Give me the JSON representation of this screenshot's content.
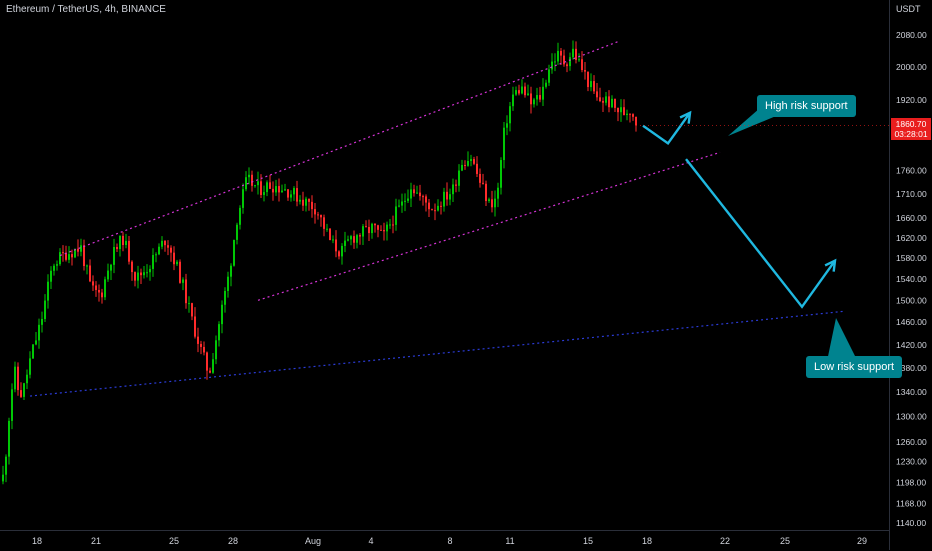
{
  "header": {
    "symbol_line": "Ethereum / TetherUS, 4h, BINANCE",
    "unit": "USDT"
  },
  "current_price": {
    "value": "1860.70",
    "countdown": "03:28:01"
  },
  "annotations": {
    "high_risk": "High risk support",
    "low_risk": "Low risk support"
  },
  "colors": {
    "background": "#000000",
    "bull": "#00c805",
    "bear": "#ff2b2b",
    "channel": "#d633d6",
    "long_support": "#2b3bd6",
    "arrow": "#1fb8e0",
    "callout": "#00838f",
    "price_tag": "#e91e1e"
  },
  "chart_data": {
    "type": "candlestick",
    "title": "Ethereum / TetherUS, 4h, BINANCE",
    "y_unit": "USDT",
    "y_scale": "log",
    "ylim": [
      1140,
      2090
    ],
    "y_ticks": [
      1140.0,
      1168.0,
      1198.0,
      1230.0,
      1260.0,
      1300.0,
      1340.0,
      1380.0,
      1420.0,
      1460.0,
      1500.0,
      1540.0,
      1580.0,
      1620.0,
      1660.0,
      1710.0,
      1760.0,
      1920.0,
      2000.0,
      2080.0
    ],
    "x_ticks": [
      "18",
      "21",
      "25",
      "28",
      "Aug",
      "4",
      "8",
      "11",
      "15",
      "18",
      "22",
      "25",
      "29"
    ],
    "last_price": 1860.7,
    "price_path": [
      [
        0,
        1200
      ],
      [
        3,
        1210
      ],
      [
        8,
        1300
      ],
      [
        13,
        1380
      ],
      [
        18,
        1335
      ],
      [
        22,
        1340
      ],
      [
        30,
        1400
      ],
      [
        40,
        1460
      ],
      [
        52,
        1570
      ],
      [
        65,
        1590
      ],
      [
        80,
        1600
      ],
      [
        90,
        1520
      ],
      [
        100,
        1510
      ],
      [
        110,
        1580
      ],
      [
        122,
        1620
      ],
      [
        135,
        1540
      ],
      [
        150,
        1570
      ],
      [
        165,
        1620
      ],
      [
        180,
        1540
      ],
      [
        190,
        1470
      ],
      [
        200,
        1410
      ],
      [
        208,
        1370
      ],
      [
        216,
        1440
      ],
      [
        228,
        1550
      ],
      [
        236,
        1660
      ],
      [
        246,
        1740
      ],
      [
        258,
        1720
      ],
      [
        270,
        1730
      ],
      [
        285,
        1720
      ],
      [
        300,
        1700
      ],
      [
        315,
        1680
      ],
      [
        330,
        1610
      ],
      [
        340,
        1590
      ],
      [
        350,
        1620
      ],
      [
        362,
        1630
      ],
      [
        372,
        1640
      ],
      [
        382,
        1620
      ],
      [
        392,
        1660
      ],
      [
        402,
        1690
      ],
      [
        410,
        1730
      ],
      [
        420,
        1700
      ],
      [
        432,
        1680
      ],
      [
        442,
        1700
      ],
      [
        452,
        1720
      ],
      [
        460,
        1780
      ],
      [
        470,
        1790
      ],
      [
        478,
        1740
      ],
      [
        488,
        1690
      ],
      [
        496,
        1700
      ],
      [
        504,
        1860
      ],
      [
        512,
        1930
      ],
      [
        520,
        1950
      ],
      [
        530,
        1910
      ],
      [
        540,
        1930
      ],
      [
        548,
        2000
      ],
      [
        556,
        2030
      ],
      [
        564,
        2010
      ],
      [
        572,
        2040
      ],
      [
        580,
        2000
      ],
      [
        588,
        1960
      ],
      [
        596,
        1920
      ],
      [
        606,
        1920
      ],
      [
        614,
        1900
      ],
      [
        622,
        1890
      ],
      [
        630,
        1900
      ],
      [
        636,
        1860.7
      ]
    ],
    "drawings": {
      "channel_upper": [
        [
          60,
          1585
        ],
        [
          620,
          2065
        ]
      ],
      "channel_lower": [
        [
          258,
          1500
        ],
        [
          720,
          1800
        ]
      ],
      "long_support": [
        [
          30,
          1333
        ],
        [
          845,
          1480
        ]
      ],
      "projection_high": [
        [
          643,
          1860
        ],
        [
          668,
          1820
        ],
        [
          690,
          1890
        ]
      ],
      "projection_low": [
        [
          686,
          1785
        ],
        [
          802,
          1488
        ],
        [
          835,
          1575
        ]
      ]
    }
  }
}
